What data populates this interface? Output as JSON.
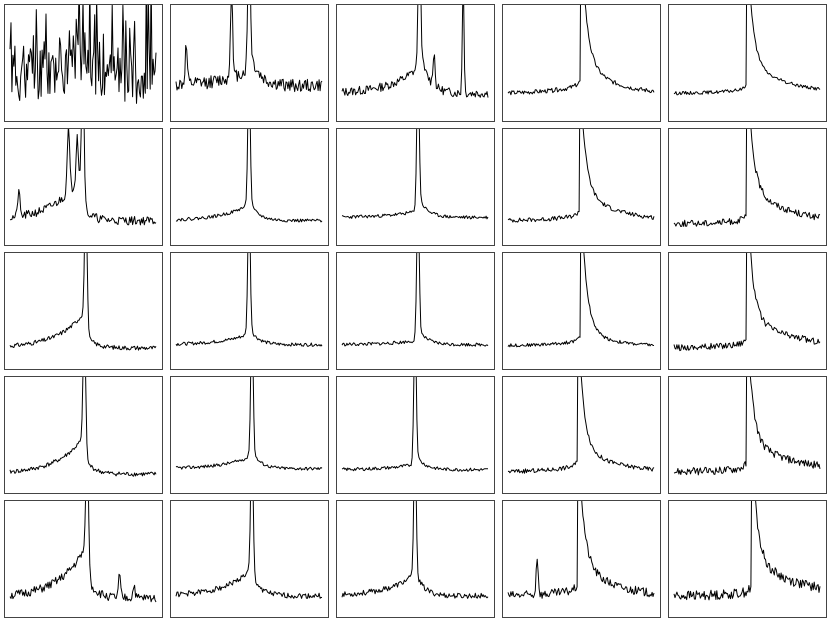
{
  "chart_data": {
    "type": "line",
    "layout": "small-multiples",
    "rows": 5,
    "cols": 5,
    "axes": "none",
    "ticks": false,
    "legend": false,
    "grid": false,
    "line_color": "#000000",
    "frame_color": "#444444",
    "x": [
      0,
      1
    ],
    "ylim": [
      0,
      1
    ],
    "panels": [
      {
        "row": 0,
        "col": 0,
        "shape": "noisy",
        "center": 0.5,
        "amp": 0.85,
        "leftRise": 0.2,
        "rightTail": 0.3,
        "noise": 0.55,
        "base": 0.15,
        "seed": 11
      },
      {
        "row": 0,
        "col": 1,
        "shape": "spike",
        "center": 0.5,
        "amp": 1.2,
        "leftRise": 0.15,
        "rightTail": 0.35,
        "noise": 0.12,
        "base": 0.25,
        "extra": [
          {
            "pos": 0.38,
            "amp": 0.85,
            "w": 0.01
          },
          {
            "pos": 0.07,
            "amp": 0.35,
            "w": 0.01
          }
        ],
        "seed": 12
      },
      {
        "row": 0,
        "col": 2,
        "shape": "spike",
        "center": 0.53,
        "amp": 1.2,
        "leftRise": 0.25,
        "rightTail": 0.4,
        "noise": 0.08,
        "base": 0.18,
        "extra": [
          {
            "pos": 0.83,
            "amp": 1.0,
            "w": 0.008
          },
          {
            "pos": 0.63,
            "amp": 0.3,
            "w": 0.01
          }
        ],
        "seed": 13
      },
      {
        "row": 0,
        "col": 3,
        "shape": "edge",
        "center": 0.5,
        "amp": 1.2,
        "leftRise": 0.08,
        "rightTail": 0.35,
        "noise": 0.04,
        "base": 0.18,
        "decay": 0.18,
        "seed": 14
      },
      {
        "row": 0,
        "col": 4,
        "shape": "edge",
        "center": 0.5,
        "amp": 1.2,
        "leftRise": 0.04,
        "rightTail": 0.3,
        "noise": 0.03,
        "base": 0.18,
        "decay": 0.25,
        "seed": 15
      },
      {
        "row": 1,
        "col": 0,
        "shape": "spike",
        "center": 0.5,
        "amp": 1.2,
        "leftRise": 0.45,
        "rightTail": 0.12,
        "noise": 0.08,
        "base": 0.15,
        "extra": [
          {
            "pos": 0.06,
            "amp": 0.25,
            "w": 0.01
          },
          {
            "pos": 0.4,
            "amp": 0.6,
            "w": 0.012
          },
          {
            "pos": 0.46,
            "amp": 0.45,
            "w": 0.01
          }
        ],
        "seed": 21
      },
      {
        "row": 1,
        "col": 1,
        "shape": "spike",
        "center": 0.5,
        "amp": 1.2,
        "leftRise": 0.15,
        "rightTail": 0.18,
        "noise": 0.03,
        "base": 0.15,
        "seed": 22
      },
      {
        "row": 1,
        "col": 2,
        "shape": "spike",
        "center": 0.52,
        "amp": 1.2,
        "leftRise": 0.06,
        "rightTail": 0.2,
        "noise": 0.03,
        "base": 0.18,
        "seed": 23
      },
      {
        "row": 1,
        "col": 3,
        "shape": "edge",
        "center": 0.49,
        "amp": 1.2,
        "leftRise": 0.05,
        "rightTail": 0.3,
        "noise": 0.04,
        "base": 0.15,
        "decay": 0.22,
        "seed": 24
      },
      {
        "row": 1,
        "col": 4,
        "shape": "edge",
        "center": 0.5,
        "amp": 1.2,
        "leftRise": 0.04,
        "rightTail": 0.35,
        "noise": 0.06,
        "base": 0.12,
        "decay": 0.28,
        "seed": 25
      },
      {
        "row": 2,
        "col": 0,
        "shape": "spike",
        "center": 0.52,
        "amp": 1.2,
        "leftRise": 0.35,
        "rightTail": 0.12,
        "noise": 0.04,
        "base": 0.12,
        "seed": 31
      },
      {
        "row": 2,
        "col": 1,
        "shape": "spike",
        "center": 0.5,
        "amp": 1.2,
        "leftRise": 0.1,
        "rightTail": 0.16,
        "noise": 0.03,
        "base": 0.15,
        "seed": 32
      },
      {
        "row": 2,
        "col": 2,
        "shape": "spike",
        "center": 0.52,
        "amp": 1.2,
        "leftRise": 0.04,
        "rightTail": 0.15,
        "noise": 0.03,
        "base": 0.15,
        "seed": 33
      },
      {
        "row": 2,
        "col": 3,
        "shape": "edge",
        "center": 0.5,
        "amp": 1.2,
        "leftRise": 0.05,
        "rightTail": 0.2,
        "noise": 0.03,
        "base": 0.14,
        "decay": 0.15,
        "seed": 34
      },
      {
        "row": 2,
        "col": 4,
        "shape": "edge",
        "center": 0.5,
        "amp": 1.2,
        "leftRise": 0.05,
        "rightTail": 0.3,
        "noise": 0.06,
        "base": 0.12,
        "decay": 0.3,
        "seed": 35
      },
      {
        "row": 3,
        "col": 0,
        "shape": "spike",
        "center": 0.51,
        "amp": 1.2,
        "leftRise": 0.35,
        "rightTail": 0.15,
        "noise": 0.04,
        "base": 0.1,
        "seed": 41
      },
      {
        "row": 3,
        "col": 1,
        "shape": "spike",
        "center": 0.52,
        "amp": 1.2,
        "leftRise": 0.12,
        "rightTail": 0.16,
        "noise": 0.03,
        "base": 0.15,
        "seed": 42
      },
      {
        "row": 3,
        "col": 2,
        "shape": "spike",
        "center": 0.5,
        "amp": 1.2,
        "leftRise": 0.05,
        "rightTail": 0.15,
        "noise": 0.03,
        "base": 0.14,
        "seed": 43
      },
      {
        "row": 3,
        "col": 3,
        "shape": "edge",
        "center": 0.48,
        "amp": 1.2,
        "leftRise": 0.06,
        "rightTail": 0.25,
        "noise": 0.04,
        "base": 0.12,
        "decay": 0.22,
        "seed": 44
      },
      {
        "row": 3,
        "col": 4,
        "shape": "edge",
        "center": 0.5,
        "amp": 1.2,
        "leftRise": 0.04,
        "rightTail": 0.3,
        "noise": 0.07,
        "base": 0.12,
        "decay": 0.3,
        "seed": 45
      },
      {
        "row": 4,
        "col": 0,
        "shape": "spike",
        "center": 0.53,
        "amp": 1.2,
        "leftRise": 0.5,
        "rightTail": 0.18,
        "noise": 0.08,
        "base": 0.1,
        "extra": [
          {
            "pos": 0.75,
            "amp": 0.2,
            "w": 0.01
          },
          {
            "pos": 0.85,
            "amp": 0.12,
            "w": 0.01
          }
        ],
        "seed": 51
      },
      {
        "row": 4,
        "col": 1,
        "shape": "spike",
        "center": 0.52,
        "amp": 1.2,
        "leftRise": 0.25,
        "rightTail": 0.2,
        "noise": 0.05,
        "base": 0.12,
        "seed": 52
      },
      {
        "row": 4,
        "col": 2,
        "shape": "spike",
        "center": 0.5,
        "amp": 1.2,
        "leftRise": 0.2,
        "rightTail": 0.22,
        "noise": 0.05,
        "base": 0.12,
        "seed": 53
      },
      {
        "row": 4,
        "col": 3,
        "shape": "edge",
        "center": 0.48,
        "amp": 1.2,
        "leftRise": 0.06,
        "rightTail": 0.35,
        "noise": 0.08,
        "base": 0.12,
        "decay": 0.2,
        "extra": [
          {
            "pos": 0.2,
            "amp": 0.35,
            "w": 0.01
          }
        ],
        "seed": 54
      },
      {
        "row": 4,
        "col": 4,
        "shape": "edge",
        "center": 0.53,
        "amp": 1.2,
        "leftRise": 0.04,
        "rightTail": 0.35,
        "noise": 0.09,
        "base": 0.12,
        "decay": 0.3,
        "seed": 55
      }
    ]
  }
}
